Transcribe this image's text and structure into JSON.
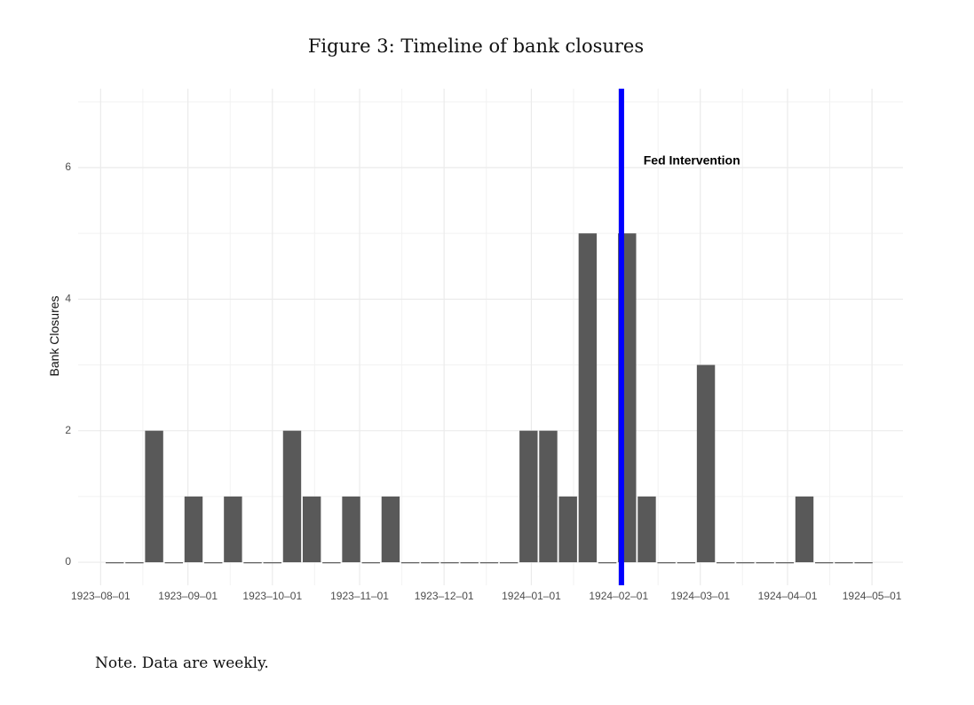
{
  "figure": {
    "title": "Figure 3: Timeline of bank closures",
    "note": "Note. Data are weekly."
  },
  "chart_data": {
    "type": "bar",
    "title": "",
    "xlabel": "",
    "ylabel": "Bank Closures",
    "x_unit": "week",
    "x": [
      "1923-08-06",
      "1923-08-13",
      "1923-08-20",
      "1923-08-27",
      "1923-09-03",
      "1923-09-10",
      "1923-09-17",
      "1923-09-24",
      "1923-10-01",
      "1923-10-08",
      "1923-10-15",
      "1923-10-22",
      "1923-10-29",
      "1923-11-05",
      "1923-11-12",
      "1923-11-19",
      "1923-11-26",
      "1923-12-03",
      "1923-12-10",
      "1923-12-17",
      "1923-12-24",
      "1923-12-31",
      "1924-01-07",
      "1924-01-14",
      "1924-01-21",
      "1924-01-28",
      "1924-02-04",
      "1924-02-11",
      "1924-02-18",
      "1924-02-25",
      "1924-03-03",
      "1924-03-10",
      "1924-03-17",
      "1924-03-24",
      "1924-03-31",
      "1924-04-07",
      "1924-04-14",
      "1924-04-21",
      "1924-04-28"
    ],
    "values": [
      0,
      0,
      2,
      0,
      1,
      0,
      1,
      0,
      0,
      2,
      1,
      0,
      1,
      0,
      1,
      0,
      0,
      0,
      0,
      0,
      0,
      2,
      2,
      1,
      5,
      0,
      5,
      1,
      0,
      0,
      3,
      0,
      0,
      0,
      0,
      1,
      0,
      0,
      0
    ],
    "ylim": [
      -0.35,
      7.2
    ],
    "yticks": [
      0,
      2,
      4,
      6
    ],
    "xlim": [
      "1923-07-24",
      "1924-05-12"
    ],
    "xticks": [
      "1923-08-01",
      "1923-09-01",
      "1923-10-01",
      "1923-11-01",
      "1923-12-01",
      "1924-01-01",
      "1924-02-01",
      "1924-03-01",
      "1924-04-01",
      "1924-05-01"
    ],
    "xtick_labels": [
      "1923–08–01",
      "1923–09–01",
      "1923–10–01",
      "1923–11–01",
      "1923–12–01",
      "1924–01–01",
      "1924–02–01",
      "1924–03–01",
      "1924–04–01",
      "1924–05–01"
    ],
    "grid": true,
    "bar_color": "#595959",
    "vline": {
      "x": "1924-02-02",
      "color": "#0000ff"
    },
    "annotation": {
      "text": "Fed Intervention",
      "x": "1924-02-27",
      "y": 6.1
    }
  }
}
